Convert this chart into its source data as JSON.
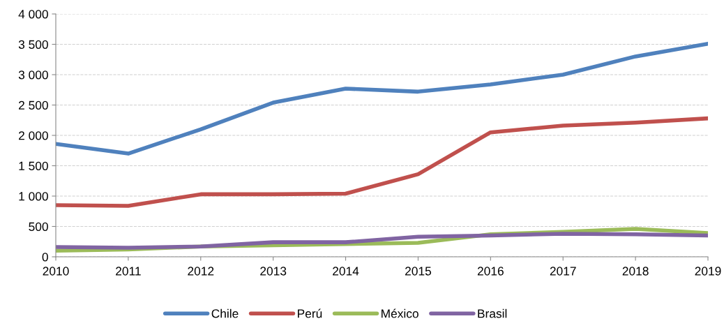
{
  "chart_data": {
    "type": "line",
    "x": [
      2010,
      2011,
      2012,
      2013,
      2014,
      2015,
      2016,
      2017,
      2018,
      2019
    ],
    "series": [
      {
        "name": "Chile",
        "color": "#4f81bd",
        "values": [
          1860,
          1700,
          2100,
          2540,
          2770,
          2720,
          2840,
          3000,
          3300,
          3510
        ]
      },
      {
        "name": "Perú",
        "color": "#c0504d",
        "values": [
          850,
          840,
          1030,
          1030,
          1040,
          1360,
          2050,
          2160,
          2210,
          2280
        ]
      },
      {
        "name": "México",
        "color": "#9bbb59",
        "values": [
          100,
          120,
          170,
          190,
          210,
          230,
          370,
          410,
          460,
          390
        ]
      },
      {
        "name": "Brasil",
        "color": "#8064a2",
        "values": [
          160,
          150,
          170,
          240,
          240,
          330,
          350,
          380,
          370,
          350
        ]
      }
    ],
    "xlim": [
      2010,
      2019
    ],
    "xticks": [
      2010,
      2011,
      2012,
      2013,
      2014,
      2015,
      2016,
      2017,
      2018,
      2019
    ],
    "ylim": [
      0,
      4000
    ],
    "yticks": [
      0,
      500,
      {
        "value": 1000,
        "label": "1 000"
      },
      {
        "value": 1500,
        "label": "1 500"
      },
      {
        "value": 2000,
        "label": "2 000"
      },
      {
        "value": 2500,
        "label": "2 500"
      },
      {
        "value": 3000,
        "label": "3 000"
      },
      {
        "value": 3500,
        "label": "3 500"
      },
      {
        "value": 4000,
        "label": "4 000"
      }
    ],
    "grid": "y",
    "legend": "bottom",
    "marker": "none",
    "line_style": "solid"
  }
}
